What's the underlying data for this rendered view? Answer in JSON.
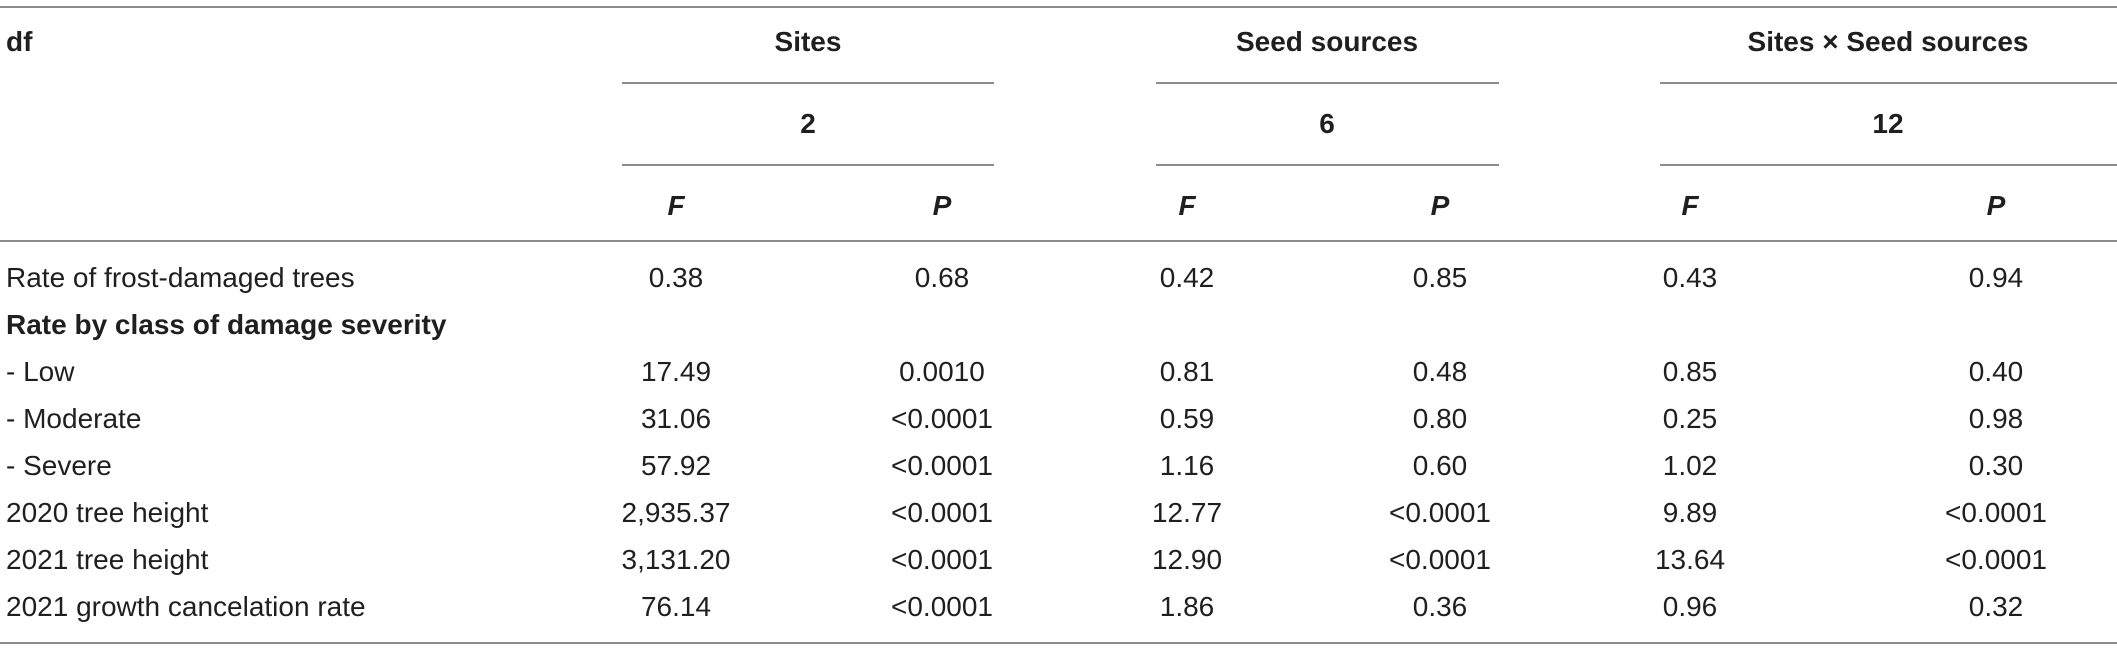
{
  "table": {
    "header": {
      "df_label": "df",
      "groups": [
        {
          "name": "Sites",
          "df": "2"
        },
        {
          "name": "Seed sources",
          "df": "6"
        },
        {
          "name": "Sites × Seed sources",
          "df": "12"
        }
      ],
      "stat_f": "F",
      "stat_p": "P"
    },
    "rows": [
      {
        "label": "Rate of frost-damaged trees",
        "values": [
          "0.38",
          "0.68",
          "0.42",
          "0.85",
          "0.43",
          "0.94"
        ]
      },
      {
        "label": "Rate by class of damage severity",
        "values": []
      },
      {
        "label": "- Low",
        "values": [
          "17.49",
          "0.0010",
          "0.81",
          "0.48",
          "0.85",
          "0.40"
        ]
      },
      {
        "label": "- Moderate",
        "values": [
          "31.06",
          "<0.0001",
          "0.59",
          "0.80",
          "0.25",
          "0.98"
        ]
      },
      {
        "label": "- Severe",
        "values": [
          "57.92",
          "<0.0001",
          "1.16",
          "0.60",
          "1.02",
          "0.30"
        ]
      },
      {
        "label": "2020 tree height",
        "values": [
          "2,935.37",
          "<0.0001",
          "12.77",
          "<0.0001",
          "9.89",
          "<0.0001"
        ]
      },
      {
        "label": "2021 tree height",
        "values": [
          "3,131.20",
          "<0.0001",
          "12.90",
          "<0.0001",
          "13.64",
          "<0.0001"
        ]
      },
      {
        "label": "2021 growth cancelation rate",
        "values": [
          "76.14",
          "<0.0001",
          "1.86",
          "0.36",
          "0.96",
          "0.32"
        ]
      }
    ]
  }
}
